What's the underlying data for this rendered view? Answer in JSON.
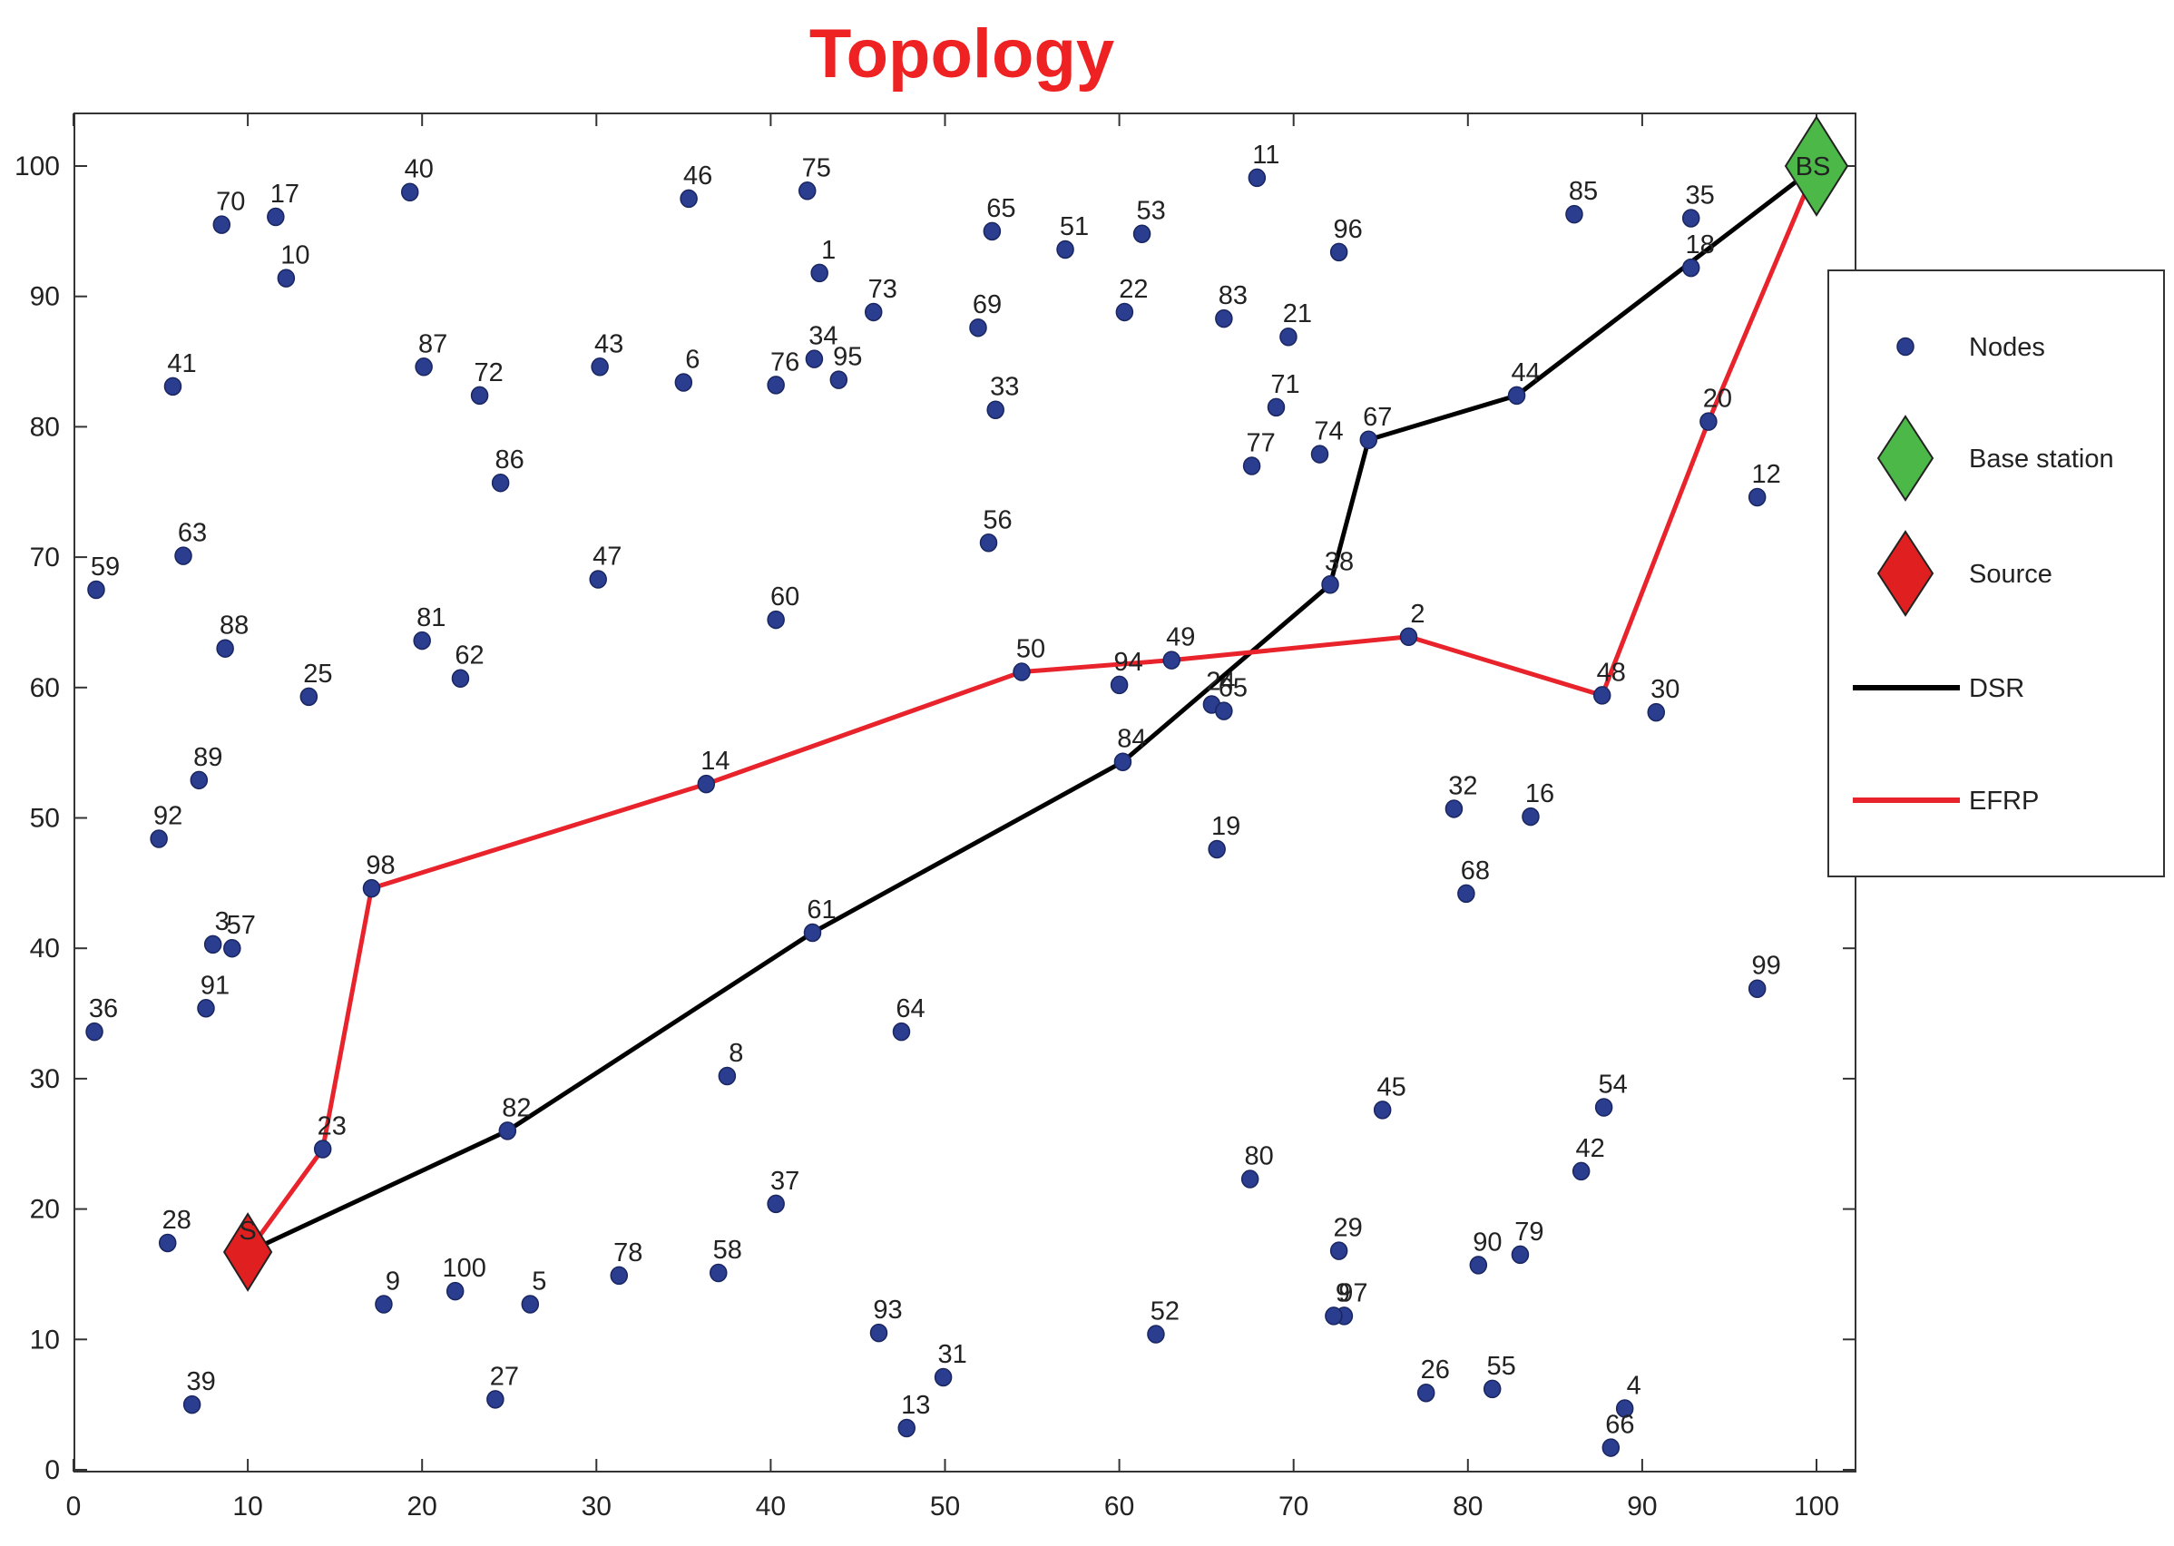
{
  "chart_data": {
    "type": "scatter",
    "title": "Topology",
    "title_color": "#ee2222",
    "xlim": [
      0,
      100
    ],
    "ylim": [
      0,
      100
    ],
    "x_ticks": [
      "0",
      "10",
      "20",
      "30",
      "40",
      "50",
      "60",
      "70",
      "80",
      "90",
      "100"
    ],
    "y_ticks": [
      "0",
      "10",
      "20",
      "30",
      "40",
      "50",
      "60",
      "70",
      "80",
      "90",
      "100"
    ],
    "grid": false,
    "legend_position": "right",
    "legend": [
      {
        "label": "Nodes",
        "kind": "node",
        "color": "#2a3d8f"
      },
      {
        "label": "Base station",
        "kind": "diamond",
        "color": "#4cb848"
      },
      {
        "label": "Source",
        "kind": "diamond",
        "color": "#e02020"
      },
      {
        "label": "DSR",
        "kind": "line",
        "color": "#000000"
      },
      {
        "label": "EFRP",
        "kind": "line",
        "color": "#e8232b"
      }
    ],
    "nodes": [
      {
        "id": "1",
        "x": 42.8,
        "y": 91.8
      },
      {
        "id": "2",
        "x": 76.6,
        "y": 63.9
      },
      {
        "id": "4",
        "x": 89,
        "y": 4.7
      },
      {
        "id": "5",
        "x": 26.2,
        "y": 12.7
      },
      {
        "id": "6",
        "x": 35,
        "y": 83.4
      },
      {
        "id": "8",
        "x": 37.5,
        "y": 30.2
      },
      {
        "id": "9",
        "x": 17.8,
        "y": 12.7
      },
      {
        "id": "10",
        "x": 12.2,
        "y": 91.4
      },
      {
        "id": "11",
        "x": 67.9,
        "y": 99.1
      },
      {
        "id": "12",
        "x": 96.6,
        "y": 74.6
      },
      {
        "id": "13",
        "x": 47.8,
        "y": 3.2
      },
      {
        "id": "14",
        "x": 36.3,
        "y": 52.6
      },
      {
        "id": "16",
        "x": 83.6,
        "y": 50.1
      },
      {
        "id": "17",
        "x": 11.6,
        "y": 96.1
      },
      {
        "id": "18",
        "x": 92.8,
        "y": 92.2
      },
      {
        "id": "19",
        "x": 65.6,
        "y": 47.6
      },
      {
        "id": "20",
        "x": 93.8,
        "y": 80.4
      },
      {
        "id": "21",
        "x": 69.7,
        "y": 86.9
      },
      {
        "id": "22",
        "x": 60.3,
        "y": 88.8
      },
      {
        "id": "23",
        "x": 14.3,
        "y": 24.6
      },
      {
        "id": "25",
        "x": 13.5,
        "y": 59.3
      },
      {
        "id": "26",
        "x": 77.6,
        "y": 5.9
      },
      {
        "id": "27",
        "x": 24.2,
        "y": 5.4
      },
      {
        "id": "28",
        "x": 5.4,
        "y": 17.4
      },
      {
        "id": "29",
        "x": 72.6,
        "y": 16.8
      },
      {
        "id": "30",
        "x": 90.8,
        "y": 58.1
      },
      {
        "id": "31",
        "x": 49.9,
        "y": 7.1
      },
      {
        "id": "32",
        "x": 79.2,
        "y": 50.7
      },
      {
        "id": "33",
        "x": 52.9,
        "y": 81.3
      },
      {
        "id": "34",
        "x": 42.5,
        "y": 85.2
      },
      {
        "id": "35",
        "x": 92.8,
        "y": 96
      },
      {
        "id": "36",
        "x": 1.2,
        "y": 33.6
      },
      {
        "id": "37",
        "x": 40.3,
        "y": 20.4
      },
      {
        "id": "38",
        "x": 72.1,
        "y": 67.9
      },
      {
        "id": "39",
        "x": 6.8,
        "y": 5
      },
      {
        "id": "3",
        "x": 8,
        "y": 40.3
      },
      {
        "id": "40",
        "x": 19.3,
        "y": 98
      },
      {
        "id": "41",
        "x": 5.7,
        "y": 83.1
      },
      {
        "id": "42",
        "x": 86.5,
        "y": 22.9
      },
      {
        "id": "43",
        "x": 30.2,
        "y": 84.6
      },
      {
        "id": "44",
        "x": 82.8,
        "y": 82.4
      },
      {
        "id": "45",
        "x": 75.1,
        "y": 27.6
      },
      {
        "id": "46",
        "x": 35.3,
        "y": 97.5
      },
      {
        "id": "47",
        "x": 30.1,
        "y": 68.3
      },
      {
        "id": "48",
        "x": 87.7,
        "y": 59.4
      },
      {
        "id": "49",
        "x": 63,
        "y": 62.1
      },
      {
        "id": "50",
        "x": 54.4,
        "y": 61.2
      },
      {
        "id": "51",
        "x": 56.9,
        "y": 93.6
      },
      {
        "id": "52",
        "x": 62.1,
        "y": 10.4
      },
      {
        "id": "53",
        "x": 61.3,
        "y": 94.8
      },
      {
        "id": "54",
        "x": 87.8,
        "y": 27.8
      },
      {
        "id": "55",
        "x": 81.4,
        "y": 6.2
      },
      {
        "id": "56",
        "x": 52.5,
        "y": 71.1
      },
      {
        "id": "57",
        "x": 9.1,
        "y": 40
      },
      {
        "id": "58",
        "x": 37,
        "y": 15.1
      },
      {
        "id": "59",
        "x": 1.3,
        "y": 67.5
      },
      {
        "id": "60",
        "x": 40.3,
        "y": 65.2
      },
      {
        "id": "61",
        "x": 42.4,
        "y": 41.2
      },
      {
        "id": "62",
        "x": 22.2,
        "y": 60.7
      },
      {
        "id": "63",
        "x": 6.3,
        "y": 70.1
      },
      {
        "id": "64",
        "x": 47.5,
        "y": 33.6
      },
      {
        "id": "65",
        "x": 52.7,
        "y": 95
      },
      {
        "id": "66",
        "x": 88.2,
        "y": 1.7
      },
      {
        "id": "67",
        "x": 74.3,
        "y": 79
      },
      {
        "id": "68",
        "x": 79.9,
        "y": 44.2
      },
      {
        "id": "69",
        "x": 51.9,
        "y": 87.6
      },
      {
        "id": "70",
        "x": 8.5,
        "y": 95.5
      },
      {
        "id": "71",
        "x": 69,
        "y": 81.5
      },
      {
        "id": "72",
        "x": 23.3,
        "y": 82.4
      },
      {
        "id": "73",
        "x": 45.9,
        "y": 88.8
      },
      {
        "id": "74",
        "x": 71.5,
        "y": 77.9
      },
      {
        "id": "75",
        "x": 42.1,
        "y": 98.1
      },
      {
        "id": "76",
        "x": 40.3,
        "y": 83.2
      },
      {
        "id": "77",
        "x": 67.6,
        "y": 77
      },
      {
        "id": "78",
        "x": 31.3,
        "y": 14.9
      },
      {
        "id": "79",
        "x": 83,
        "y": 16.5
      },
      {
        "id": "80",
        "x": 67.5,
        "y": 22.3
      },
      {
        "id": "81",
        "x": 20,
        "y": 63.6
      },
      {
        "id": "82",
        "x": 24.9,
        "y": 26
      },
      {
        "id": "83",
        "x": 66,
        "y": 88.3
      },
      {
        "id": "84",
        "x": 60.2,
        "y": 54.3
      },
      {
        "id": "85",
        "x": 86.1,
        "y": 96.3
      },
      {
        "id": "86",
        "x": 24.5,
        "y": 75.7
      },
      {
        "id": "87",
        "x": 20.1,
        "y": 84.6
      },
      {
        "id": "88",
        "x": 8.7,
        "y": 63
      },
      {
        "id": "89",
        "x": 7.2,
        "y": 52.9
      },
      {
        "id": "90",
        "x": 80.6,
        "y": 15.7
      },
      {
        "id": "91",
        "x": 7.6,
        "y": 35.4
      },
      {
        "id": "92",
        "x": 4.9,
        "y": 48.4
      },
      {
        "id": "93",
        "x": 46.2,
        "y": 10.5
      },
      {
        "id": "94",
        "x": 60,
        "y": 60.2
      },
      {
        "id": "95",
        "x": 43.9,
        "y": 83.6
      },
      {
        "id": "96",
        "x": 72.6,
        "y": 93.4
      },
      {
        "id": "97",
        "x": 72.9,
        "y": 11.8
      },
      {
        "id": "9",
        "x": 72.3,
        "y": 11.8
      },
      {
        "id": "99",
        "x": 96.6,
        "y": 36.9
      },
      {
        "id": "100",
        "x": 21.9,
        "y": 13.7
      },
      {
        "id": "24",
        "x": 65.3,
        "y": 58.7
      },
      {
        "id": "65",
        "x": 66,
        "y": 58.2
      }
    ],
    "base_station": {
      "label": "BS",
      "x": 100,
      "y": 100
    },
    "source": {
      "label": "S",
      "x": 10,
      "y": 16.7
    },
    "series": [
      {
        "name": "DSR",
        "color": "#000000",
        "x": [
          10,
          24.9,
          42.4,
          60.2,
          72.1,
          74.3,
          82.8,
          100
        ],
        "y": [
          16.7,
          26,
          41.2,
          54.3,
          67.9,
          79,
          82.4,
          100
        ]
      },
      {
        "name": "EFRP",
        "color": "#e8232b",
        "x": [
          10,
          14.3,
          17.1,
          36.3,
          54.4,
          63,
          76.6,
          87.7,
          93.8,
          100
        ],
        "y": [
          16.7,
          24.6,
          44.6,
          52.6,
          61.2,
          62.1,
          63.9,
          59.4,
          80.4,
          100
        ]
      }
    ],
    "extra_nodes": [
      {
        "id": "98",
        "x": 17.1,
        "y": 44.6
      }
    ]
  }
}
